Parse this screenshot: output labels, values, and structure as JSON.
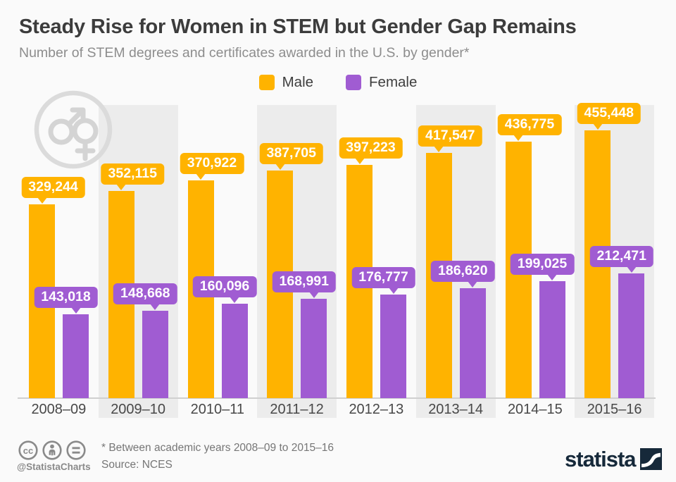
{
  "header": {
    "title": "Steady Rise for Women in STEM but Gender Gap Remains",
    "subtitle": "Number of STEM degrees and certificates awarded in the U.S. by gender*"
  },
  "legend": {
    "items": [
      {
        "label": "Male",
        "color": "#FFB300"
      },
      {
        "label": "Female",
        "color": "#A05CD2"
      }
    ]
  },
  "chart_data": {
    "type": "bar",
    "title": "Number of STEM degrees and certificates awarded in the U.S. by gender",
    "categories": [
      "2008–09",
      "2009–10",
      "2010–11",
      "2011–12",
      "2012–13",
      "2013–14",
      "2014–15",
      "2015–16"
    ],
    "series": [
      {
        "name": "Male",
        "color": "#FFB300",
        "values": [
          329244,
          352115,
          370922,
          387705,
          397223,
          417547,
          436775,
          455448
        ]
      },
      {
        "name": "Female",
        "color": "#A05CD2",
        "values": [
          143018,
          148668,
          160096,
          168991,
          176777,
          186620,
          199025,
          212471
        ]
      }
    ],
    "xlabel": "",
    "ylabel": "",
    "ylim": [
      0,
      480000
    ],
    "grid": false,
    "legend_position": "top-center",
    "value_labels": "shown in rounded callout badges above each bar",
    "band_color": "#ECECEC",
    "background_color": "#FAFAFA"
  },
  "footer": {
    "note": "* Between academic years 2008–09 to 2015–16",
    "source": "Source: NCES",
    "credit": "@StatistaCharts",
    "brand": "statista"
  },
  "icons": {
    "gender": "male-female-symbol",
    "license": [
      "cc-icon",
      "attribution-person-icon",
      "equals-icon"
    ],
    "brand_mark": "statista-swoosh-square"
  },
  "colors": {
    "male": "#FFB300",
    "female": "#A05CD2",
    "band": "#ECECEC",
    "background": "#FAFAFA",
    "axis_line": "#D0D0D0",
    "brand_navy": "#16293A"
  }
}
